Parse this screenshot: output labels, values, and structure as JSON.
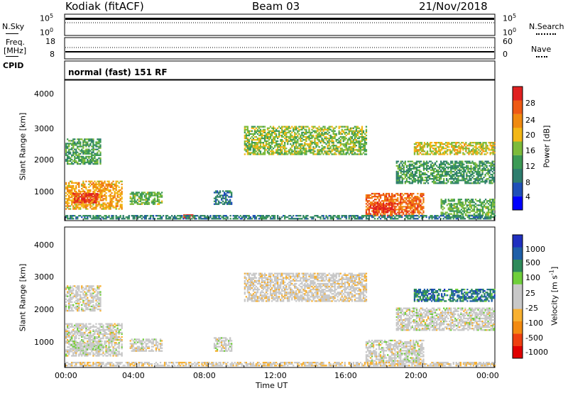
{
  "header": {
    "station": "Kodiak (fitACF)",
    "beam": "Beam 03",
    "date": "21/Nov/2018"
  },
  "top_panels": {
    "nsky_label": "N.Sky",
    "nsky_ticks": [
      "10^5",
      "10^0"
    ],
    "nsearch_label": "N.Search",
    "nsearch_ticks": [
      "10^5",
      "10^0"
    ],
    "freq_label": "Freq.",
    "freq_unit": "[MHz]",
    "freq_ticks": [
      "18",
      "8"
    ],
    "nave_label": "Nave",
    "nave_ticks": [
      "60",
      "0"
    ],
    "cpid_label": "CPID",
    "cpid_value": "normal (fast) 151 RF"
  },
  "colors": {
    "power_scale": [
      "#0000ff",
      "#1f4fb8",
      "#2e7d6e",
      "#3c9a55",
      "#7dbb3a",
      "#f3b716",
      "#f08a10",
      "#ee5a14",
      "#e02020"
    ],
    "velocity_scale": [
      "#e00000",
      "#ee4010",
      "#f38a10",
      "#f8b030",
      "#c8c8c8",
      "#c8c8c8",
      "#6fcf3a",
      "#2e8a5a",
      "#1f5fa8",
      "#2030c0"
    ]
  },
  "chart_data": [
    {
      "type": "heatmap",
      "name": "power",
      "ylabel": "Slant Range [km]",
      "yticks": [
        "4000",
        "3000",
        "2000",
        "1000"
      ],
      "ylim": [
        180,
        4500
      ],
      "xlim": [
        0,
        24
      ],
      "colorbar_label": "Power [dB]",
      "colorbar_ticks": [
        "28",
        "24",
        "20",
        "16",
        "12",
        "8",
        "4"
      ],
      "clim": [
        0,
        30
      ],
      "regions": [
        {
          "t0": 0.0,
          "t1": 3.2,
          "r0": 500,
          "r1": 1400,
          "level": 20
        },
        {
          "t0": 0.4,
          "t1": 1.8,
          "r0": 700,
          "r1": 1000,
          "level": 27
        },
        {
          "t0": 0.0,
          "t1": 2.0,
          "r0": 1900,
          "r1": 2700,
          "level": 12
        },
        {
          "t0": 3.6,
          "t1": 5.4,
          "r0": 650,
          "r1": 1050,
          "level": 14
        },
        {
          "t0": 6.6,
          "t1": 7.2,
          "r0": 220,
          "r1": 340,
          "level": 29
        },
        {
          "t0": 8.3,
          "t1": 9.3,
          "r0": 650,
          "r1": 1100,
          "level": 8
        },
        {
          "t0": 10.0,
          "t1": 16.8,
          "r0": 2200,
          "r1": 3100,
          "level": 15
        },
        {
          "t0": 16.8,
          "t1": 20.0,
          "r0": 300,
          "r1": 1000,
          "level": 24
        },
        {
          "t0": 17.2,
          "t1": 18.4,
          "r0": 400,
          "r1": 700,
          "level": 28
        },
        {
          "t0": 18.5,
          "t1": 24.0,
          "r0": 1300,
          "r1": 2000,
          "level": 11
        },
        {
          "t0": 19.5,
          "t1": 24.0,
          "r0": 2200,
          "r1": 2600,
          "level": 17
        },
        {
          "t0": 21.0,
          "t1": 24.0,
          "r0": 300,
          "r1": 800,
          "level": 13
        },
        {
          "t0": 0.0,
          "t1": 24.0,
          "r0": 200,
          "r1": 330,
          "level": 9
        }
      ]
    },
    {
      "type": "heatmap",
      "name": "velocity",
      "ylabel": "Slant Range [km]",
      "yticks": [
        "4000",
        "3000",
        "2000",
        "1000"
      ],
      "ylim": [
        180,
        4500
      ],
      "xlim": [
        0,
        24
      ],
      "xlabel": "Time UT",
      "xticks": [
        "00:00",
        "04:00",
        "08:00",
        "12:00",
        "16:00",
        "20:00",
        "00:00"
      ],
      "colorbar_label": "Velocity [m s^-1]",
      "colorbar_ticks": [
        "1000",
        "500",
        "100",
        "25",
        "-25",
        "-100",
        "-500",
        "-1000"
      ],
      "clim": [
        -1200,
        1200
      ],
      "regions": [
        {
          "t0": 0.0,
          "t1": 3.2,
          "r0": 500,
          "r1": 1500,
          "level": 0
        },
        {
          "t0": 0.3,
          "t1": 2.0,
          "r0": 700,
          "r1": 900,
          "level": 60
        },
        {
          "t0": 0.0,
          "t1": 2.0,
          "r0": 1900,
          "r1": 2700,
          "level": 0
        },
        {
          "t0": 3.6,
          "t1": 5.4,
          "r0": 650,
          "r1": 1050,
          "level": 0
        },
        {
          "t0": 8.3,
          "t1": 9.3,
          "r0": 650,
          "r1": 1100,
          "level": 0
        },
        {
          "t0": 10.0,
          "t1": 16.8,
          "r0": 2200,
          "r1": 3100,
          "level": -60
        },
        {
          "t0": 16.8,
          "t1": 20.0,
          "r0": 300,
          "r1": 1000,
          "level": 0
        },
        {
          "t0": 18.5,
          "t1": 24.0,
          "r0": 1300,
          "r1": 2000,
          "level": 0
        },
        {
          "t0": 19.5,
          "t1": 24.0,
          "r0": 2200,
          "r1": 2600,
          "level": 700
        },
        {
          "t0": 0.0,
          "t1": 24.0,
          "r0": 200,
          "r1": 330,
          "level": -120
        }
      ]
    }
  ]
}
